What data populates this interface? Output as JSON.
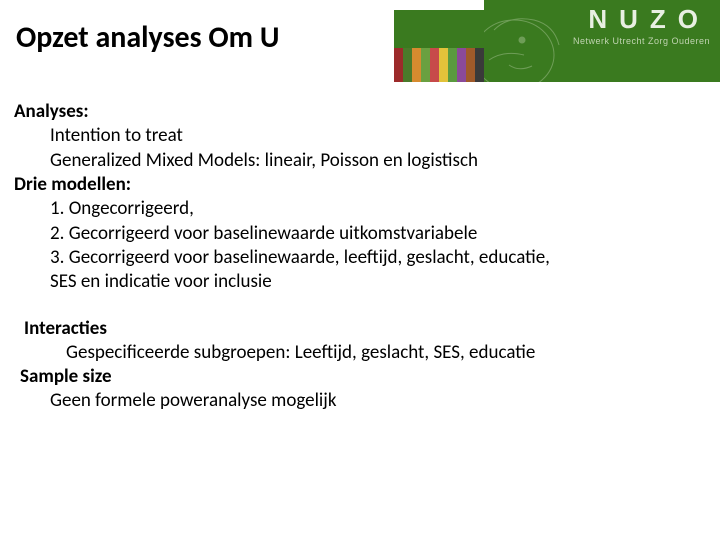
{
  "header": {
    "title": "Opzet analyses Om U",
    "logo_text": "NUZO",
    "logo_subtitle": "Netwerk Utrecht Zorg Ouderen",
    "band_color": "#3a7a1f",
    "title_bg": "#ffffff",
    "title_color": "#000000",
    "title_fontsize": 30,
    "logo_color": "#e8efe2",
    "logo_sub_color": "#c0d4b1",
    "stripe_colors": [
      "#9c2a2a",
      "#4a7a2a",
      "#d68b2f",
      "#6aa040",
      "#c74a4a",
      "#e2c23a",
      "#5a9a3f",
      "#8a4a9a",
      "#a05a2a",
      "#3a3a3a"
    ]
  },
  "content": {
    "section1_label": "Analyses:",
    "section1_item1": "Intention to treat",
    "section1_item2": "Generalized Mixed Models: lineair, Poisson en logistisch",
    "section2_label": "Drie modellen:",
    "section2_item1": "1.   Ongecorrigeerd,",
    "section2_item2": "2.   Gecorrigeerd voor baselinewaarde uitkomstvariabele",
    "section2_item3a": "3. Gecorrigeerd voor baselinewaarde, leeftijd, geslacht, educatie,",
    "section2_item3b": "SES    en indicatie voor inclusie",
    "section3_label": "Interacties",
    "section3_item1": "Gespecificeerde subgroepen: Leeftijd, geslacht, SES, educatie",
    "section4_label": "Sample size",
    "section4_item1": "Geen formele poweranalyse mogelijk",
    "font_size": 19,
    "text_color": "#000000"
  }
}
